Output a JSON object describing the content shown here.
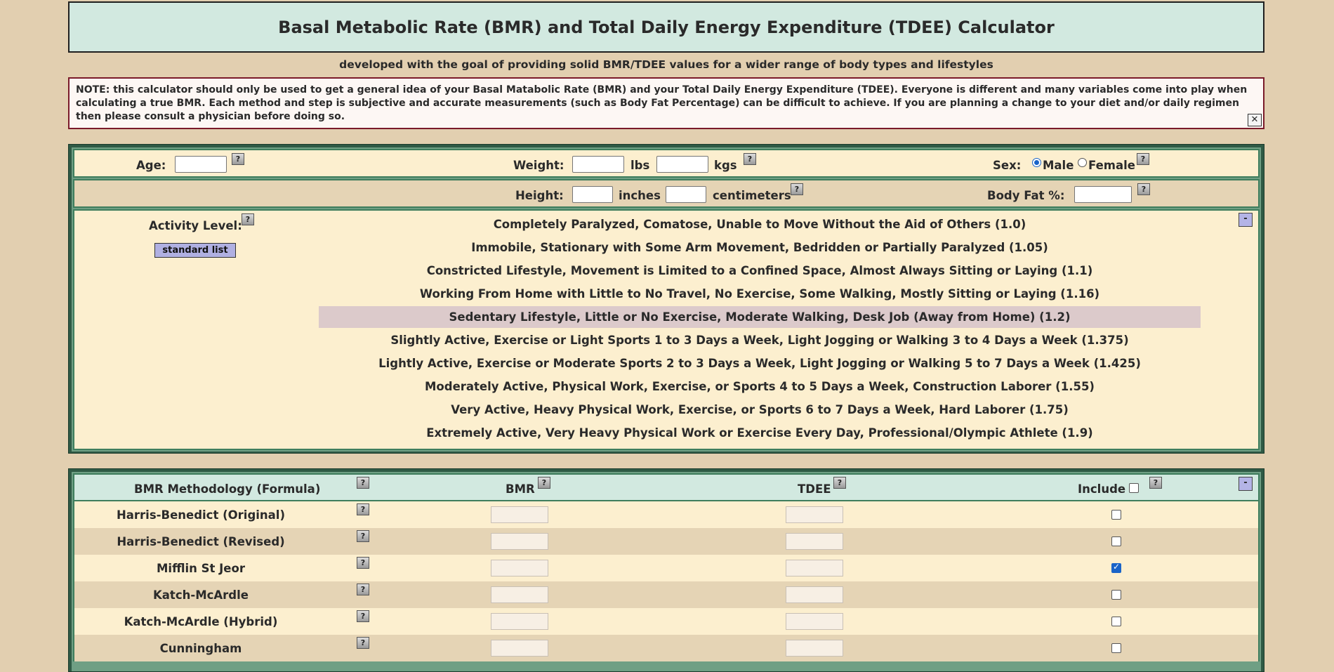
{
  "header": {
    "title": "Basal Metabolic Rate (BMR) and Total Daily Energy Expenditure (TDEE) Calculator",
    "subtitle": "developed with the goal of providing solid BMR/TDEE values for a wider range of body types and lifestyles",
    "note": "NOTE: this calculator should only be used to get a general idea of your Basal Matabolic Rate (BMR) and your Total Daily Energy Expenditure (TDEE). Everyone is different and many variables come into play when calculating a true BMR. Each method and step is subjective and accurate measurements (such as Body Fat Percentage) can be difficult to achieve. If you are planning a change to your diet and/or daily regimen then please consult a physician before doing so.",
    "close_label": "✕"
  },
  "inputs": {
    "age_label": "Age:",
    "weight_label": "Weight:",
    "lbs_label": "lbs",
    "kgs_label": "kgs",
    "sex_label": "Sex:",
    "male_label": "Male",
    "female_label": "Female",
    "sex_selected": "Male",
    "height_label": "Height:",
    "inches_label": "inches",
    "cm_label": "centimeters",
    "bodyfat_label": "Body Fat %:",
    "help_label": "?"
  },
  "activity": {
    "label": "Activity Level:",
    "list_button": "standard list",
    "collapse_label": "-",
    "selected_index": 4,
    "items": [
      "Completely Paralyzed, Comatose, Unable to Move Without the Aid of Others (1.0)",
      "Immobile, Stationary with Some Arm Movement, Bedridden or Partially Paralyzed (1.05)",
      "Constricted Lifestyle, Movement is Limited to a Confined Space, Almost Always Sitting or Laying (1.1)",
      "Working From Home with Little to No Travel, No Exercise, Some Walking, Mostly Sitting or Laying (1.16)",
      "Sedentary Lifestyle, Little or No Exercise, Moderate Walking, Desk Job (Away from Home) (1.2)",
      "Slightly Active, Exercise or Light Sports 1 to 3 Days a Week, Light Jogging or Walking 3 to 4 Days a Week (1.375)",
      "Lightly Active, Exercise or Moderate Sports 2 to 3 Days a Week, Light Jogging or Walking 5 to 7 Days a Week (1.425)",
      "Moderately Active, Physical Work, Exercise, or Sports 4 to 5 Days a Week, Construction Laborer (1.55)",
      "Very Active, Heavy Physical Work, Exercise, or Sports 6 to 7 Days a Week, Hard Laborer (1.75)",
      "Extremely Active, Very Heavy Physical Work or Exercise Every Day, Professional/Olympic Athlete (1.9)"
    ]
  },
  "results": {
    "col_method": "BMR Methodology (Formula)",
    "col_bmr": "BMR",
    "col_tdee": "TDEE",
    "col_include": "Include",
    "collapse_label": "-",
    "rows": [
      {
        "name": "Harris-Benedict (Original)",
        "included": false
      },
      {
        "name": "Harris-Benedict (Revised)",
        "included": false
      },
      {
        "name": "Mifflin St Jeor",
        "included": true
      },
      {
        "name": "Katch-McArdle",
        "included": false
      },
      {
        "name": "Katch-McArdle (Hybrid)",
        "included": false
      },
      {
        "name": "Cunningham",
        "included": false
      }
    ]
  },
  "colors": {
    "background": "#e2cfb0",
    "title_bg": "#d2e9e0",
    "row_light": "#fcefcf",
    "row_dark": "#e5d4b5",
    "panel_border": "#2f5a45",
    "selected_activity": "#dccacb",
    "note_border": "#7a1a2a",
    "button_bg": "#b0b0e2"
  }
}
